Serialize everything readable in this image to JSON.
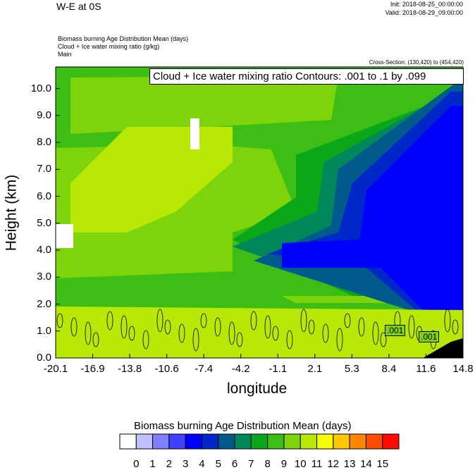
{
  "chart_data": {
    "type": "heatmap",
    "title": "W-E at 0S",
    "init": "Init: 2018-08-25_00:00:00",
    "valid": "Valid: 2018-08-29_09:00:00",
    "fields": [
      "Biomass burning Age Distribution Mean   (days)",
      "Cloud + Ice water mixing ratio   (g/kg)",
      "Main"
    ],
    "cross_section": "Cross-Section: (130,420) to (454,420)",
    "contour_label": "Cloud + Ice water mixing ratio Contours: .001 to .1 by .099",
    "contour_marks": [
      ".001",
      ".001"
    ],
    "xlabel": "longitude",
    "ylabel": "Height (km)",
    "xticks": [
      "-20.1",
      "-16.9",
      "-13.8",
      "-10.6",
      "-7.4",
      "-4.2",
      "-1.1",
      "2.1",
      "5.3",
      "8.4",
      "11.6",
      "14.8"
    ],
    "yticks": [
      "0.0",
      "1.0",
      "2.0",
      "3.0",
      "4.0",
      "5.0",
      "6.0",
      "7.0",
      "8.0",
      "9.0",
      "10.0"
    ],
    "ylim": [
      0,
      10.8
    ],
    "colorbar": {
      "title": "Biomass burning Age Distribution Mean  (days)",
      "labels": [
        "0",
        "1",
        "2",
        "3",
        "4",
        "5",
        "6",
        "7",
        "8",
        "9",
        "10",
        "11",
        "12",
        "13",
        "14",
        "15"
      ],
      "colors": [
        "#ffffff",
        "#c0c0ff",
        "#8080ff",
        "#4040ff",
        "#0000ff",
        "#0028c8",
        "#005a8c",
        "#00875a",
        "#0aa819",
        "#3cbe14",
        "#7ed40a",
        "#b9e806",
        "#f5ff00",
        "#ffc800",
        "#ff8700",
        "#ff4b00",
        "#ff0a00"
      ]
    }
  }
}
